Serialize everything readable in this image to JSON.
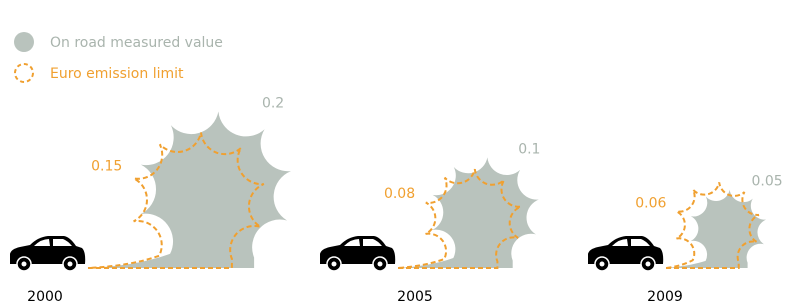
{
  "chart_data": {
    "type": "cloud",
    "categories": [
      "2000",
      "2005",
      "2009"
    ],
    "series": [
      {
        "name": "On road measured value",
        "color": "#b9c3bd",
        "values": [
          0.2,
          0.1,
          0.05
        ]
      },
      {
        "name": "Euro emission limit",
        "color": "#f0a030",
        "values": [
          0.15,
          0.08,
          0.06
        ]
      }
    ]
  }
}
